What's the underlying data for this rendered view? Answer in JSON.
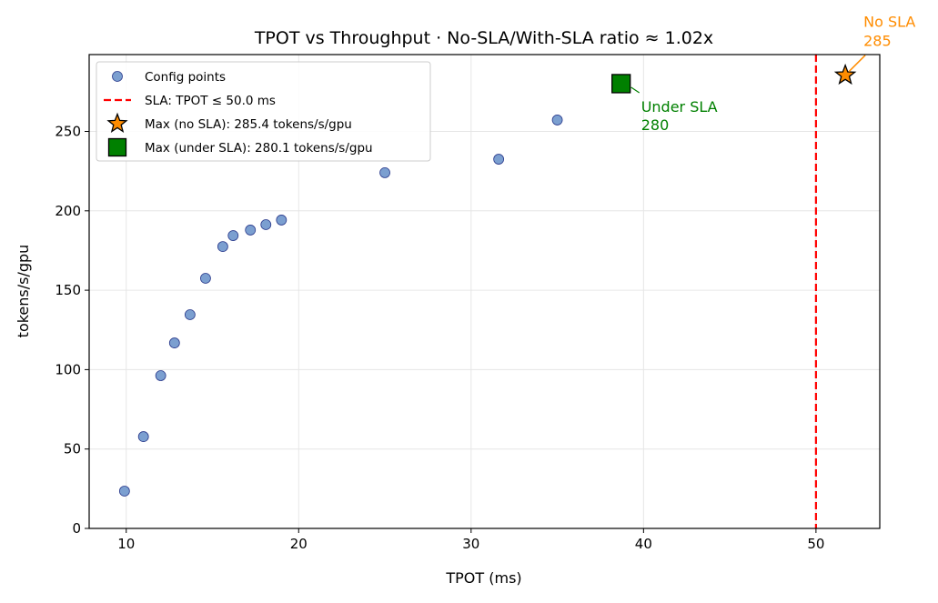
{
  "chart_data": {
    "type": "scatter",
    "title": "TPOT vs Throughput · No-SLA/With-SLA ratio ≈ 1.02x",
    "xlabel": "TPOT (ms)",
    "ylabel": "tokens/s/gpu",
    "xlim": [
      7.85,
      53.7
    ],
    "ylim": [
      0,
      298.4
    ],
    "xticks": [
      10,
      20,
      30,
      40,
      50
    ],
    "yticks": [
      0,
      50,
      100,
      150,
      200,
      250
    ],
    "grid": true,
    "legend_placement": "upper-left",
    "series": [
      {
        "name": "Config points",
        "marker": "circle",
        "color": "#7b9fd0",
        "edge_color": "#2a3a8c",
        "x": [
          9.9,
          11.0,
          12.0,
          12.8,
          13.7,
          14.6,
          15.6,
          16.2,
          17.2,
          18.1,
          19.0,
          25.0,
          31.6,
          35.0
        ],
        "y": [
          23.5,
          57.8,
          96.2,
          116.8,
          134.6,
          157.5,
          177.5,
          184.4,
          187.9,
          191.3,
          194.2,
          224.0,
          232.5,
          257.2
        ]
      },
      {
        "name": "Max (no SLA): 285.4 tokens/s/gpu",
        "marker": "star",
        "color": "#ff8c00",
        "x": [
          51.7
        ],
        "y": [
          285.4
        ]
      },
      {
        "name": "Max (under SLA): 280.1 tokens/s/gpu",
        "marker": "square",
        "color": "#008000",
        "x": [
          38.7
        ],
        "y": [
          280.1
        ]
      }
    ],
    "vlines": [
      {
        "name": "SLA: TPOT ≤ 50.0 ms",
        "x": 50.0,
        "color": "#ff0000",
        "style": "dashed"
      }
    ],
    "annotations": [
      {
        "lines": [
          "No SLA",
          "285"
        ],
        "color": "#ff8c00",
        "target_x": 51.7,
        "target_y": 285.4
      },
      {
        "lines": [
          "Under SLA",
          "280"
        ],
        "color": "#008000",
        "target_x": 38.7,
        "target_y": 280.1
      }
    ]
  }
}
